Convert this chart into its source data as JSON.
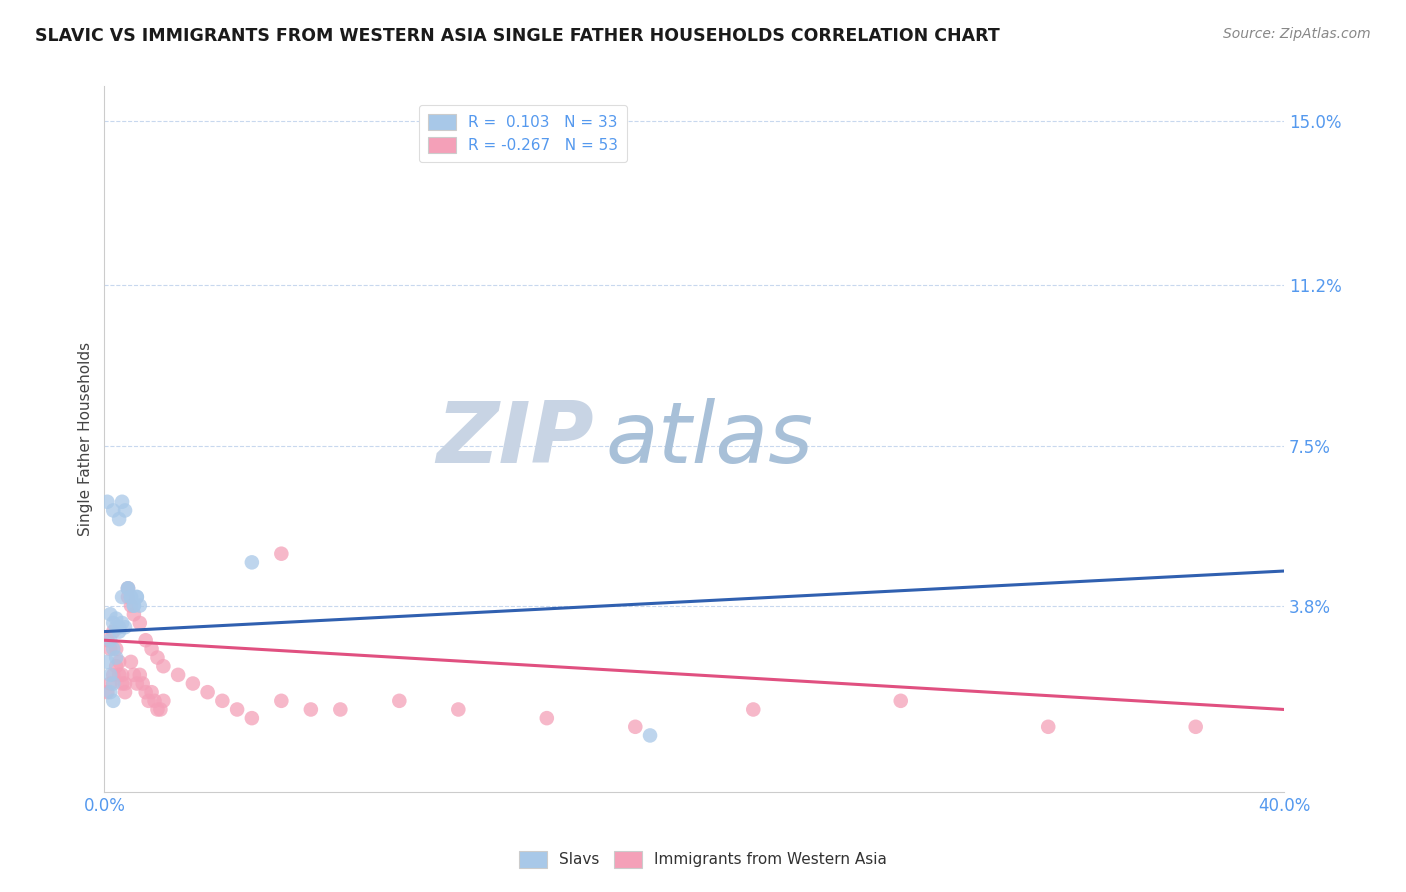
{
  "title": "SLAVIC VS IMMIGRANTS FROM WESTERN ASIA SINGLE FATHER HOUSEHOLDS CORRELATION CHART",
  "source": "Source: ZipAtlas.com",
  "ylabel": "Single Father Households",
  "xlim": [
    0.0,
    0.4
  ],
  "ylim": [
    -0.005,
    0.158
  ],
  "yticks": [
    0.038,
    0.075,
    0.112,
    0.15
  ],
  "ytick_labels": [
    "3.8%",
    "7.5%",
    "11.2%",
    "15.0%"
  ],
  "xticks": [
    0.0,
    0.4
  ],
  "xtick_labels": [
    "0.0%",
    "40.0%"
  ],
  "blue_R": 0.103,
  "blue_N": 33,
  "pink_R": -0.267,
  "pink_N": 53,
  "blue_color": "#a8c8e8",
  "pink_color": "#f4a0b8",
  "blue_line_color": "#3060b0",
  "pink_line_color": "#e05080",
  "title_color": "#1a1a1a",
  "axis_label_color": "#444444",
  "tick_label_color": "#5599ee",
  "grid_color": "#c8d8ee",
  "watermark_zip_color": "#c8d8ee",
  "watermark_atlas_color": "#a8c0e0",
  "background_color": "#ffffff",
  "blue_trend_x": [
    0.0,
    0.4
  ],
  "blue_trend_y": [
    0.032,
    0.046
  ],
  "pink_trend_x": [
    0.0,
    0.4
  ],
  "pink_trend_y": [
    0.03,
    0.014
  ],
  "slavs_x": [
    0.001,
    0.003,
    0.005,
    0.006,
    0.007,
    0.008,
    0.009,
    0.01,
    0.011,
    0.002,
    0.003,
    0.004,
    0.005,
    0.002,
    0.003,
    0.004,
    0.001,
    0.002,
    0.003,
    0.002,
    0.003,
    0.004,
    0.005,
    0.006,
    0.007,
    0.006,
    0.008,
    0.009,
    0.01,
    0.011,
    0.012,
    0.185,
    0.05
  ],
  "slavs_y": [
    0.062,
    0.06,
    0.058,
    0.062,
    0.06,
    0.042,
    0.04,
    0.038,
    0.04,
    0.036,
    0.034,
    0.035,
    0.033,
    0.03,
    0.028,
    0.026,
    0.025,
    0.022,
    0.02,
    0.018,
    0.016,
    0.033,
    0.032,
    0.034,
    0.033,
    0.04,
    0.042,
    0.04,
    0.038,
    0.04,
    0.038,
    0.008,
    0.048
  ],
  "pink_x": [
    0.001,
    0.002,
    0.003,
    0.004,
    0.005,
    0.006,
    0.007,
    0.008,
    0.009,
    0.01,
    0.011,
    0.012,
    0.013,
    0.014,
    0.015,
    0.016,
    0.017,
    0.018,
    0.019,
    0.02,
    0.001,
    0.002,
    0.003,
    0.004,
    0.005,
    0.006,
    0.007,
    0.008,
    0.009,
    0.01,
    0.012,
    0.014,
    0.016,
    0.018,
    0.02,
    0.025,
    0.03,
    0.035,
    0.04,
    0.045,
    0.05,
    0.06,
    0.07,
    0.08,
    0.1,
    0.12,
    0.15,
    0.18,
    0.22,
    0.27,
    0.32,
    0.37,
    0.06
  ],
  "pink_y": [
    0.03,
    0.028,
    0.032,
    0.028,
    0.025,
    0.022,
    0.02,
    0.042,
    0.025,
    0.022,
    0.02,
    0.022,
    0.02,
    0.018,
    0.016,
    0.018,
    0.016,
    0.014,
    0.014,
    0.016,
    0.018,
    0.02,
    0.022,
    0.024,
    0.022,
    0.02,
    0.018,
    0.04,
    0.038,
    0.036,
    0.034,
    0.03,
    0.028,
    0.026,
    0.024,
    0.022,
    0.02,
    0.018,
    0.016,
    0.014,
    0.012,
    0.016,
    0.014,
    0.014,
    0.016,
    0.014,
    0.012,
    0.01,
    0.014,
    0.016,
    0.01,
    0.01,
    0.05
  ]
}
